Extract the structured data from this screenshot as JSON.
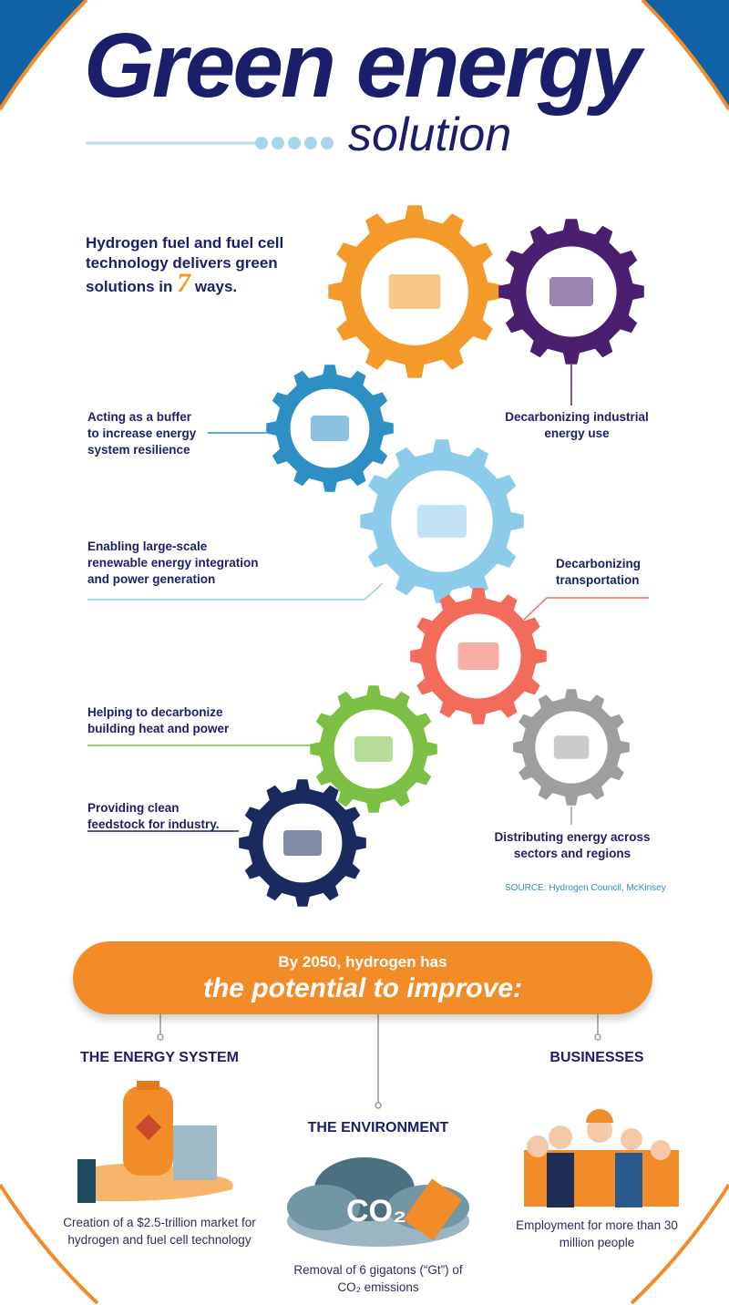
{
  "header": {
    "title": "Green energy",
    "subtitle": "solution"
  },
  "intro": {
    "before": "Hydrogen fuel and fuel cell technology delivers green solutions in ",
    "number": "7",
    "after": " ways."
  },
  "ways": [
    {
      "label": "Decarbonizing industrial energy use",
      "color": "#4b1f6f"
    },
    {
      "label": "Acting as a buffer to increase energy system resilience",
      "color": "#2d8fc4"
    },
    {
      "label": "Enabling large-scale renewable energy integration and power generation",
      "color": "#8ccbea"
    },
    {
      "label": "Decarbonizing transportation",
      "color": "#f26b5b"
    },
    {
      "label": "Helping to decarbonize building heat and power",
      "color": "#7bbf45"
    },
    {
      "label": "Providing clean feedstock for industry.",
      "color": "#1a2a5e"
    },
    {
      "label": "Distributing energy across sectors and regions",
      "color": "#9e9e9e"
    }
  ],
  "source": "SOURCE: Hydrogen Council, McKinsey",
  "banner": {
    "line1": "By 2050, hydrogen has",
    "line2": "the potential to improve:"
  },
  "impacts": [
    {
      "heading": "THE ENERGY SYSTEM",
      "text": "Creation of a $2.5-trillion market for hydrogen and fuel cell technology"
    },
    {
      "heading": "THE ENVIRONMENT",
      "text": "Removal of 6 gigatons (“Gt”) of CO₂ emissions",
      "icon_text": "CO₂"
    },
    {
      "heading": "BUSINESSES",
      "text": "Employment for more than 30 million people"
    }
  ],
  "colors": {
    "navy": "#1b1f6b",
    "orange": "#f28c28",
    "blue": "#0d63a5",
    "top_gear": "#f39a2b"
  }
}
